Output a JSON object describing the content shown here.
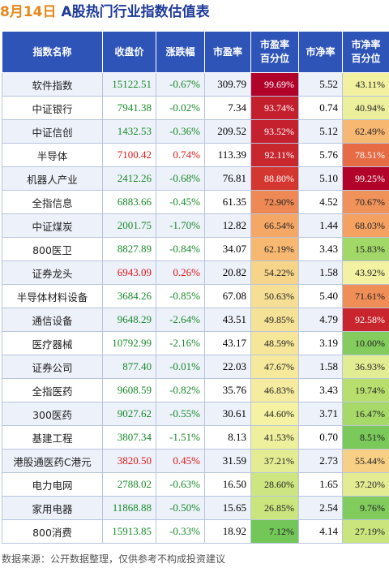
{
  "title": {
    "date": "8月14日",
    "main": "A股热门行业指数估值表"
  },
  "headers": [
    "指数名称",
    "收盘价",
    "涨跌幅",
    "市盈率",
    "市盈率\n百分位",
    "市净率",
    "市净率\n百分位"
  ],
  "colors": {
    "header_bg": "#2e54b8",
    "up": "#e01818",
    "down": "#1a8a2a",
    "pct_scale": [
      "#4cb84c",
      "#b9e06e",
      "#f6f2a4",
      "#f7b06a",
      "#e04a32",
      "#b0002a"
    ]
  },
  "rows": [
    {
      "name": "软件指数",
      "close": "15122.51",
      "change": "-0.67%",
      "pe": "309.79",
      "pe_pct": "99.69%",
      "pb": "5.52",
      "pb_pct": "43.11%"
    },
    {
      "name": "中证银行",
      "close": "7941.38",
      "change": "-0.02%",
      "pe": "7.34",
      "pe_pct": "93.74%",
      "pb": "0.74",
      "pb_pct": "40.94%"
    },
    {
      "name": "中证信创",
      "close": "1432.53",
      "change": "-0.36%",
      "pe": "209.52",
      "pe_pct": "93.52%",
      "pb": "5.12",
      "pb_pct": "62.49%"
    },
    {
      "name": "半导体",
      "close": "7100.42",
      "change": "0.74%",
      "pe": "113.39",
      "pe_pct": "92.11%",
      "pb": "5.76",
      "pb_pct": "78.51%"
    },
    {
      "name": "机器人产业",
      "close": "2412.26",
      "change": "-0.68%",
      "pe": "76.81",
      "pe_pct": "88.80%",
      "pb": "5.10",
      "pb_pct": "99.25%"
    },
    {
      "name": "全指信息",
      "close": "6883.66",
      "change": "-0.45%",
      "pe": "61.35",
      "pe_pct": "72.90%",
      "pb": "4.52",
      "pb_pct": "70.67%"
    },
    {
      "name": "中证煤炭",
      "close": "2001.75",
      "change": "-1.70%",
      "pe": "12.82",
      "pe_pct": "66.54%",
      "pb": "1.44",
      "pb_pct": "68.03%"
    },
    {
      "name": "800医卫",
      "close": "8827.89",
      "change": "-0.84%",
      "pe": "34.07",
      "pe_pct": "62.19%",
      "pb": "3.43",
      "pb_pct": "15.83%"
    },
    {
      "name": "证券龙头",
      "close": "6943.09",
      "change": "0.26%",
      "pe": "20.82",
      "pe_pct": "54.22%",
      "pb": "1.58",
      "pb_pct": "43.92%"
    },
    {
      "name": "半导体材料设备",
      "close": "3684.26",
      "change": "-0.85%",
      "pe": "67.08",
      "pe_pct": "50.63%",
      "pb": "5.40",
      "pb_pct": "71.61%"
    },
    {
      "name": "通信设备",
      "close": "9648.29",
      "change": "-2.64%",
      "pe": "43.51",
      "pe_pct": "49.85%",
      "pb": "4.79",
      "pb_pct": "92.58%"
    },
    {
      "name": "医疗器械",
      "close": "10792.99",
      "change": "-2.16%",
      "pe": "43.17",
      "pe_pct": "48.59%",
      "pb": "3.19",
      "pb_pct": "10.00%"
    },
    {
      "name": "证券公司",
      "close": "877.40",
      "change": "-0.01%",
      "pe": "22.03",
      "pe_pct": "47.67%",
      "pb": "1.58",
      "pb_pct": "36.93%"
    },
    {
      "name": "全指医药",
      "close": "9608.59",
      "change": "-0.82%",
      "pe": "35.76",
      "pe_pct": "46.83%",
      "pb": "3.43",
      "pb_pct": "19.74%"
    },
    {
      "name": "300医药",
      "close": "9027.62",
      "change": "-0.55%",
      "pe": "30.61",
      "pe_pct": "44.60%",
      "pb": "3.71",
      "pb_pct": "16.47%"
    },
    {
      "name": "基建工程",
      "close": "3807.34",
      "change": "-1.51%",
      "pe": "8.13",
      "pe_pct": "41.53%",
      "pb": "0.70",
      "pb_pct": "8.51%"
    },
    {
      "name": "港股通医药C港元",
      "close": "3820.50",
      "change": "0.45%",
      "pe": "31.59",
      "pe_pct": "37.21%",
      "pb": "2.73",
      "pb_pct": "55.44%"
    },
    {
      "name": "电力电网",
      "close": "2788.02",
      "change": "-0.63%",
      "pe": "16.50",
      "pe_pct": "28.60%",
      "pb": "1.65",
      "pb_pct": "37.20%"
    },
    {
      "name": "家用电器",
      "close": "11868.88",
      "change": "-0.50%",
      "pe": "15.65",
      "pe_pct": "26.85%",
      "pb": "2.54",
      "pb_pct": "9.76%"
    },
    {
      "name": "800消费",
      "close": "15913.85",
      "change": "-0.33%",
      "pe": "18.92",
      "pe_pct": "7.12%",
      "pb": "4.14",
      "pb_pct": "27.19%"
    }
  ],
  "footer": "数据来源：公开数据整理，仅供参考不构成投资建议"
}
